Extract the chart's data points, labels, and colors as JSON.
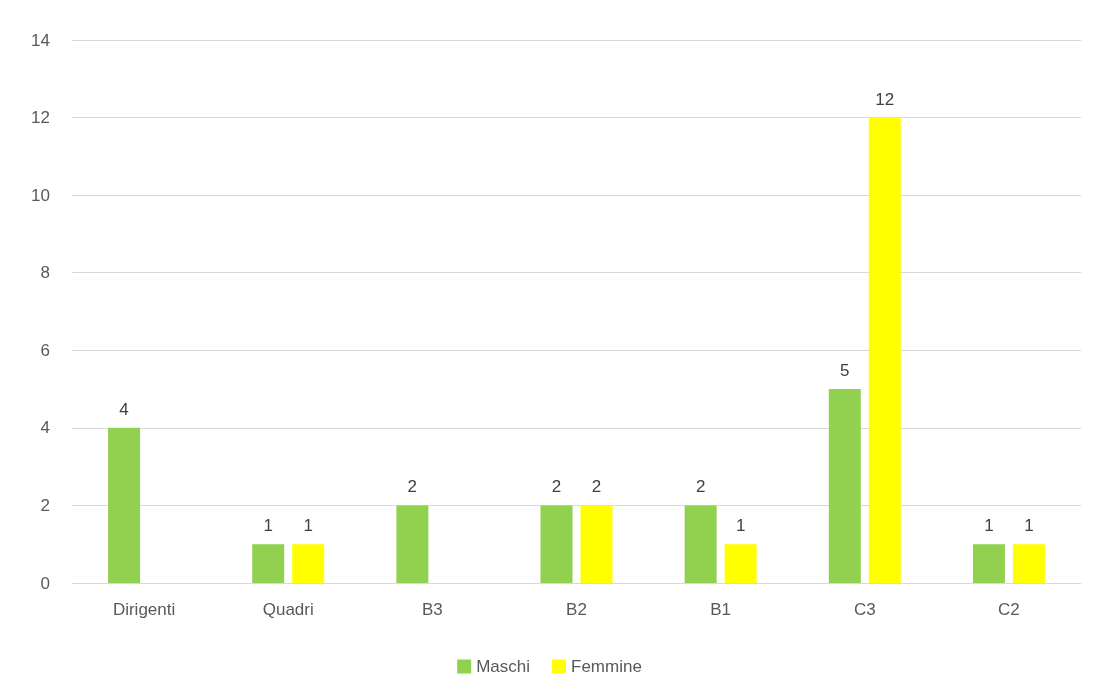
{
  "chart_data": {
    "type": "bar",
    "categories": [
      "Dirigenti",
      "Quadri",
      "B3",
      "B2",
      "B1",
      "C3",
      "C2"
    ],
    "series": [
      {
        "name": "Maschi",
        "color": "#92d050",
        "values": [
          4,
          1,
          2,
          2,
          2,
          5,
          1
        ]
      },
      {
        "name": "Femmine",
        "color": "#ffff00",
        "values": [
          null,
          1,
          null,
          2,
          1,
          12,
          1
        ]
      }
    ],
    "ylim": [
      0,
      14
    ],
    "yticks": [
      0,
      2,
      4,
      6,
      8,
      10,
      12,
      14
    ],
    "grid": "y",
    "legend": "bottom",
    "data_labels": true
  }
}
